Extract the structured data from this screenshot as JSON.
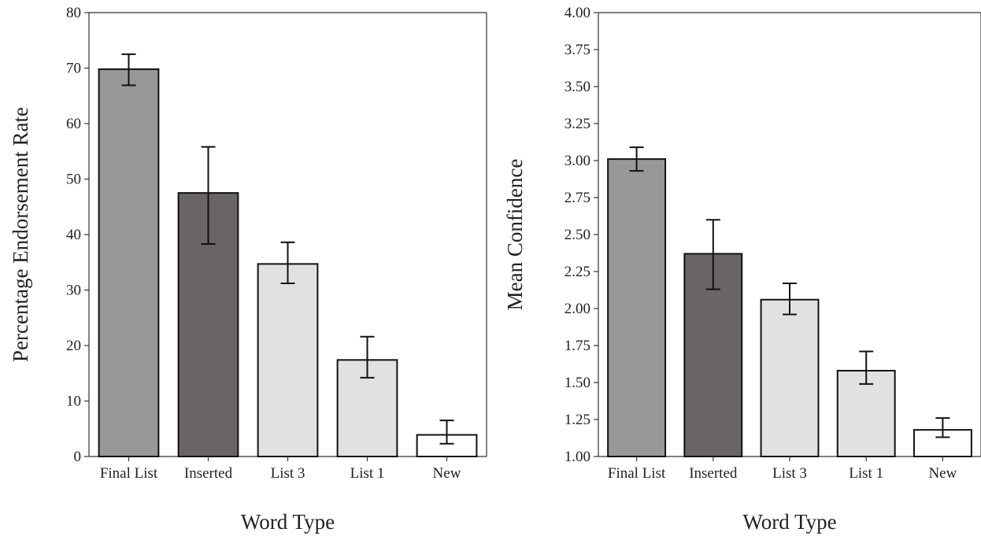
{
  "chart_data": [
    {
      "type": "bar",
      "categories": [
        "Final List",
        "Inserted",
        "List 3",
        "List 1",
        "New"
      ],
      "values": [
        69.8,
        47.5,
        34.7,
        17.4,
        3.9
      ],
      "error_low": [
        66.9,
        38.3,
        31.2,
        14.2,
        2.3
      ],
      "error_high": [
        72.5,
        55.8,
        38.6,
        21.6,
        6.5
      ],
      "bar_colors": [
        "#989898",
        "#686564",
        "#e1e1e1",
        "#e1e1e1",
        "#ffffff"
      ],
      "xlabel": "Word Type",
      "ylabel": "Percentage Endorsement Rate",
      "ylim": [
        0,
        80
      ],
      "yticks": [
        0,
        10,
        20,
        30,
        40,
        50,
        60,
        70,
        80
      ],
      "ytick_labels": [
        "0",
        "10",
        "20",
        "30",
        "40",
        "50",
        "60",
        "70",
        "80"
      ],
      "grid": false
    },
    {
      "type": "bar",
      "categories": [
        "Final List",
        "Inserted",
        "List 3",
        "List 1",
        "New"
      ],
      "values": [
        3.01,
        2.37,
        2.06,
        1.58,
        1.18
      ],
      "error_low": [
        2.93,
        2.13,
        1.96,
        1.49,
        1.13
      ],
      "error_high": [
        3.09,
        2.6,
        2.17,
        1.71,
        1.26
      ],
      "bar_colors": [
        "#989898",
        "#686564",
        "#e1e1e1",
        "#e1e1e1",
        "#ffffff"
      ],
      "xlabel": "Word Type",
      "ylabel": "Mean Confidence",
      "ylim": [
        1.0,
        4.0
      ],
      "yticks": [
        1.0,
        1.25,
        1.5,
        1.75,
        2.0,
        2.25,
        2.5,
        2.75,
        3.0,
        3.25,
        3.5,
        3.75,
        4.0
      ],
      "ytick_labels": [
        "1.00",
        "1.25",
        "1.50",
        "1.75",
        "2.00",
        "2.25",
        "2.50",
        "2.75",
        "3.00",
        "3.25",
        "3.50",
        "3.75",
        "4.00"
      ],
      "grid": false
    }
  ]
}
